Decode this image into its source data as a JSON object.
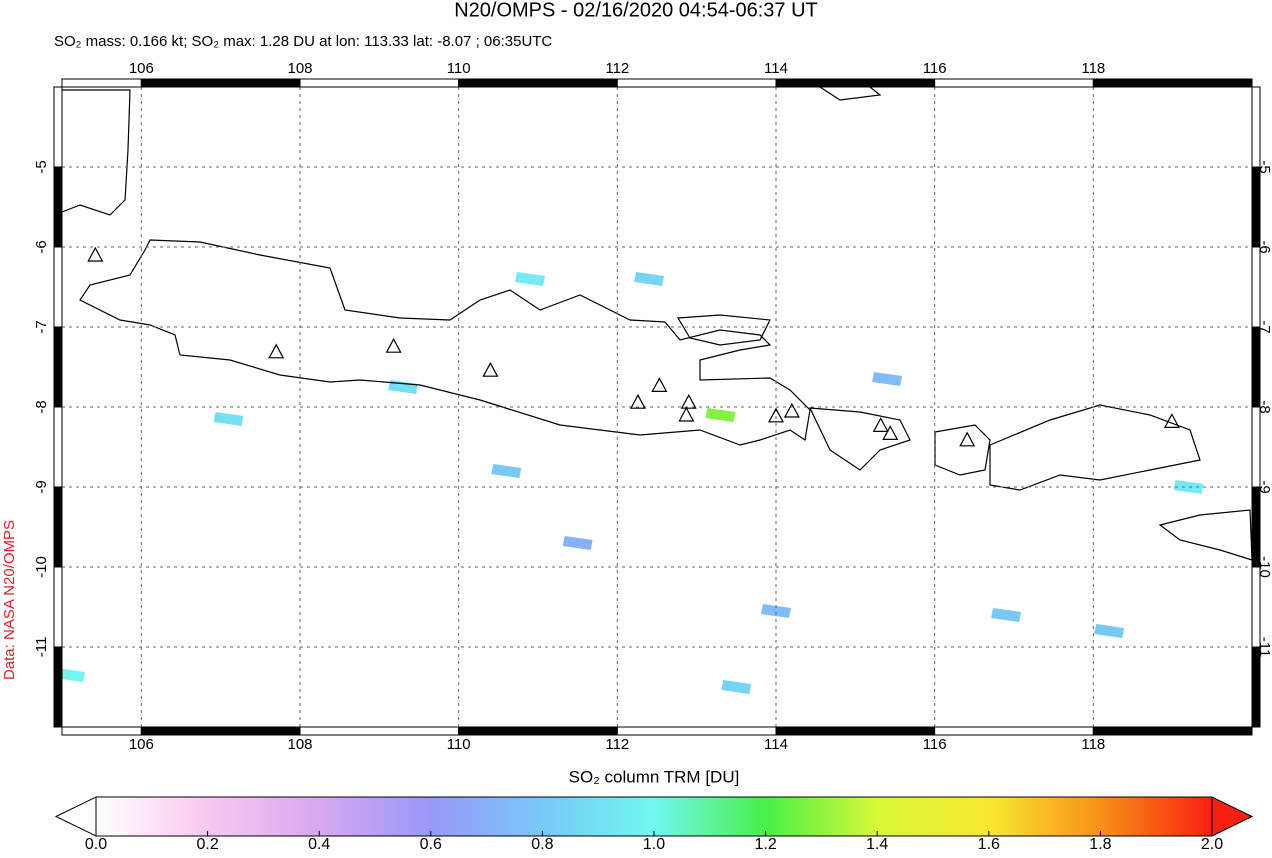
{
  "chart_data": {
    "type": "map",
    "title": "N20/OMPS - 02/16/2020 04:54-06:37 UT",
    "subtitle": "SO₂ mass: 0.166 kt; SO₂ max: 1.28 DU at lon: 113.33 lat: -8.07 ; 06:35UTC",
    "credit": "Data: NASA N20/OMPS",
    "colorbar_label": "SO₂ column TRM [DU]",
    "xlim": [
      105,
      120
    ],
    "ylim": [
      -12,
      -4
    ],
    "xticks": [
      106,
      108,
      110,
      112,
      114,
      116,
      118
    ],
    "yticks": [
      -5,
      -6,
      -7,
      -8,
      -9,
      -10,
      -11
    ],
    "grid": true,
    "colorbar_lim": [
      0,
      2
    ],
    "colorbar_ticks": [
      {
        "value": 0,
        "label": "0.0"
      },
      {
        "value": 0.2,
        "label": "0.2"
      },
      {
        "value": 0.4,
        "label": "0.4"
      },
      {
        "value": 0.6,
        "label": "0.6"
      },
      {
        "value": 0.8,
        "label": "0.8"
      },
      {
        "value": 1,
        "label": "1.0"
      },
      {
        "value": 1.2,
        "label": "1.2"
      },
      {
        "value": 1.4,
        "label": "1.4"
      },
      {
        "value": 1.6,
        "label": "1.6"
      },
      {
        "value": 1.8,
        "label": "1.8"
      },
      {
        "value": 2,
        "label": "2.0"
      }
    ],
    "colormap": [
      "#ffffff",
      "#f8c8f0",
      "#d8a8f0",
      "#9898f8",
      "#78c8f8",
      "#70f8f0",
      "#48f048",
      "#d8f838",
      "#f8e830",
      "#f89018",
      "#f82010"
    ],
    "pixels": {
      "lon": [
        113.3,
        110.9,
        112.4,
        119.2,
        113.5,
        105.1,
        115.4,
        116.9,
        118.2,
        109.3,
        107.1,
        110.6,
        111.5,
        114.0
      ],
      "lat": [
        -8.1,
        -6.4,
        -6.4,
        -9.0,
        -11.5,
        -11.35,
        -7.65,
        -10.6,
        -10.8,
        -7.75,
        -8.15,
        -8.8,
        -9.7,
        -10.55
      ],
      "values": [
        1.28,
        0.95,
        0.85,
        0.95,
        0.85,
        1.0,
        0.75,
        0.8,
        0.8,
        0.9,
        0.9,
        0.8,
        0.7,
        0.75
      ]
    },
    "volcanoes": {
      "lon": [
        105.42,
        107.7,
        109.18,
        110.4,
        112.26,
        112.53,
        112.9,
        112.87,
        114.0,
        114.2,
        115.32,
        115.44,
        116.41,
        118.99
      ],
      "lat": [
        -6.1,
        -7.31,
        -7.24,
        -7.54,
        -7.94,
        -7.73,
        -7.94,
        -8.1,
        -8.11,
        -8.05,
        -8.23,
        -8.33,
        -8.41,
        -8.18
      ]
    }
  }
}
